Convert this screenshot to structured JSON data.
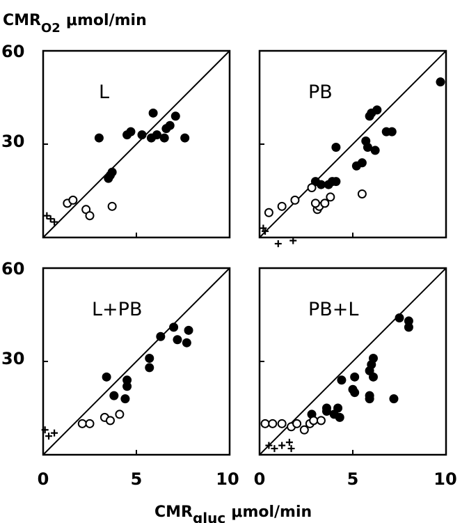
{
  "chart_data": {
    "type": "scatter",
    "ylabel": {
      "main": "CMR",
      "sub": "O2",
      "unit": "μmol/min"
    },
    "xlabel": {
      "main": "CMR",
      "sub": "gluc",
      "unit": "μmol/min"
    },
    "xlim": [
      0,
      10
    ],
    "ylim": [
      0,
      60
    ],
    "x_tick_labels": [
      "0",
      "5",
      "10"
    ],
    "y_tick_labels": [
      "60",
      "30"
    ],
    "identity_line": true,
    "panels": [
      {
        "label": "L",
        "filled": [
          [
            3.0,
            32
          ],
          [
            4.5,
            33
          ],
          [
            4.7,
            34
          ],
          [
            5.3,
            33
          ],
          [
            5.8,
            32
          ],
          [
            6.1,
            33
          ],
          [
            6.5,
            32
          ],
          [
            6.6,
            35
          ],
          [
            6.8,
            36
          ],
          [
            7.1,
            39
          ],
          [
            7.6,
            32
          ],
          [
            5.9,
            40
          ],
          [
            3.5,
            19
          ],
          [
            3.7,
            21
          ],
          [
            3.6,
            20
          ]
        ],
        "open": [
          [
            1.3,
            11
          ],
          [
            1.6,
            12
          ],
          [
            2.3,
            9
          ],
          [
            2.5,
            7
          ],
          [
            3.7,
            10
          ]
        ],
        "plus": [
          [
            0.2,
            7
          ],
          [
            0.4,
            6
          ],
          [
            0.6,
            5
          ]
        ]
      },
      {
        "label": "PB",
        "filled": [
          [
            9.7,
            50
          ],
          [
            6.3,
            41
          ],
          [
            6.0,
            40
          ],
          [
            5.9,
            39
          ],
          [
            6.8,
            34
          ],
          [
            7.1,
            34
          ],
          [
            6.2,
            28
          ],
          [
            5.7,
            31
          ],
          [
            5.8,
            29
          ],
          [
            4.1,
            29
          ],
          [
            5.2,
            23
          ],
          [
            5.5,
            24
          ],
          [
            3.0,
            18
          ],
          [
            3.3,
            17
          ],
          [
            3.7,
            17
          ],
          [
            3.9,
            18
          ],
          [
            4.1,
            18
          ]
        ],
        "open": [
          [
            0.5,
            8
          ],
          [
            1.2,
            10
          ],
          [
            1.9,
            12
          ],
          [
            2.8,
            16
          ],
          [
            3.1,
            9
          ],
          [
            3.2,
            10
          ],
          [
            3.5,
            11
          ],
          [
            3.8,
            13
          ],
          [
            5.5,
            14
          ],
          [
            3.0,
            11
          ]
        ],
        "plus": [
          [
            0.2,
            3
          ],
          [
            0.3,
            2
          ],
          [
            1.0,
            -2
          ],
          [
            1.8,
            -1
          ]
        ]
      },
      {
        "label": "L+PB",
        "filled": [
          [
            7.0,
            41
          ],
          [
            7.8,
            40
          ],
          [
            6.3,
            38
          ],
          [
            7.2,
            37
          ],
          [
            7.7,
            36
          ],
          [
            5.7,
            31
          ],
          [
            5.7,
            28
          ],
          [
            3.4,
            25
          ],
          [
            4.5,
            24
          ],
          [
            4.5,
            22
          ],
          [
            3.8,
            19
          ],
          [
            4.4,
            18
          ]
        ],
        "open": [
          [
            2.1,
            10
          ],
          [
            2.5,
            10
          ],
          [
            3.3,
            12
          ],
          [
            3.6,
            11
          ],
          [
            4.1,
            13
          ]
        ],
        "plus": [
          [
            0.1,
            8
          ],
          [
            0.3,
            6
          ],
          [
            0.6,
            7
          ]
        ]
      },
      {
        "label": "PB+L",
        "filled": [
          [
            7.5,
            44
          ],
          [
            8.0,
            43
          ],
          [
            8.0,
            41
          ],
          [
            6.1,
            31
          ],
          [
            6.0,
            29
          ],
          [
            5.9,
            27
          ],
          [
            6.1,
            25
          ],
          [
            5.1,
            25
          ],
          [
            4.4,
            24
          ],
          [
            5.0,
            21
          ],
          [
            5.1,
            20
          ],
          [
            5.9,
            19
          ],
          [
            5.9,
            18
          ],
          [
            7.2,
            18
          ],
          [
            2.8,
            13
          ],
          [
            3.6,
            15
          ],
          [
            4.2,
            15
          ],
          [
            3.6,
            14
          ],
          [
            4.0,
            13
          ],
          [
            4.3,
            12
          ]
        ],
        "open": [
          [
            0.3,
            10
          ],
          [
            0.7,
            10
          ],
          [
            1.2,
            10
          ],
          [
            1.7,
            9
          ],
          [
            2.0,
            10
          ],
          [
            2.4,
            8
          ],
          [
            2.7,
            10
          ],
          [
            2.9,
            11
          ],
          [
            3.3,
            11
          ]
        ],
        "plus": [
          [
            0.5,
            3
          ],
          [
            0.8,
            2
          ],
          [
            1.2,
            3
          ],
          [
            1.6,
            4
          ],
          [
            1.7,
            2
          ]
        ]
      }
    ]
  }
}
